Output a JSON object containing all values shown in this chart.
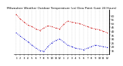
{
  "title": "Milwaukee Weather Outdoor Temperature (vs) Dew Point (Last 24 Hours)",
  "temp_values": [
    62,
    56,
    52,
    48,
    46,
    43,
    41,
    44,
    47,
    46,
    44,
    43,
    49,
    53,
    52,
    51,
    50,
    48,
    46,
    44,
    43,
    42,
    40,
    38
  ],
  "dew_values": [
    38,
    34,
    30,
    26,
    22,
    18,
    15,
    14,
    20,
    25,
    28,
    30,
    26,
    22,
    20,
    18,
    17,
    16,
    18,
    20,
    22,
    21,
    20,
    19
  ],
  "x_labels": [
    "1",
    "2",
    "3",
    "4",
    "5",
    "6",
    "7",
    "8",
    "9",
    "10",
    "11",
    "12",
    "1",
    "2",
    "3",
    "4",
    "5",
    "6",
    "7",
    "8",
    "9",
    "10",
    "11",
    "12"
  ],
  "ylim": [
    10,
    68
  ],
  "yticks": [
    15,
    20,
    25,
    30,
    35,
    40,
    45,
    50,
    55,
    60
  ],
  "ytick_labels": [
    "15",
    "20",
    "25",
    "30",
    "35",
    "40",
    "45",
    "50",
    "55",
    "60"
  ],
  "temp_color": "#cc0000",
  "dew_color": "#0000cc",
  "bg_color": "#ffffff",
  "grid_color": "#aaaaaa",
  "title_fontsize": 3.2,
  "tick_fontsize": 2.8,
  "line_width": 0.7,
  "marker_size": 1.8
}
